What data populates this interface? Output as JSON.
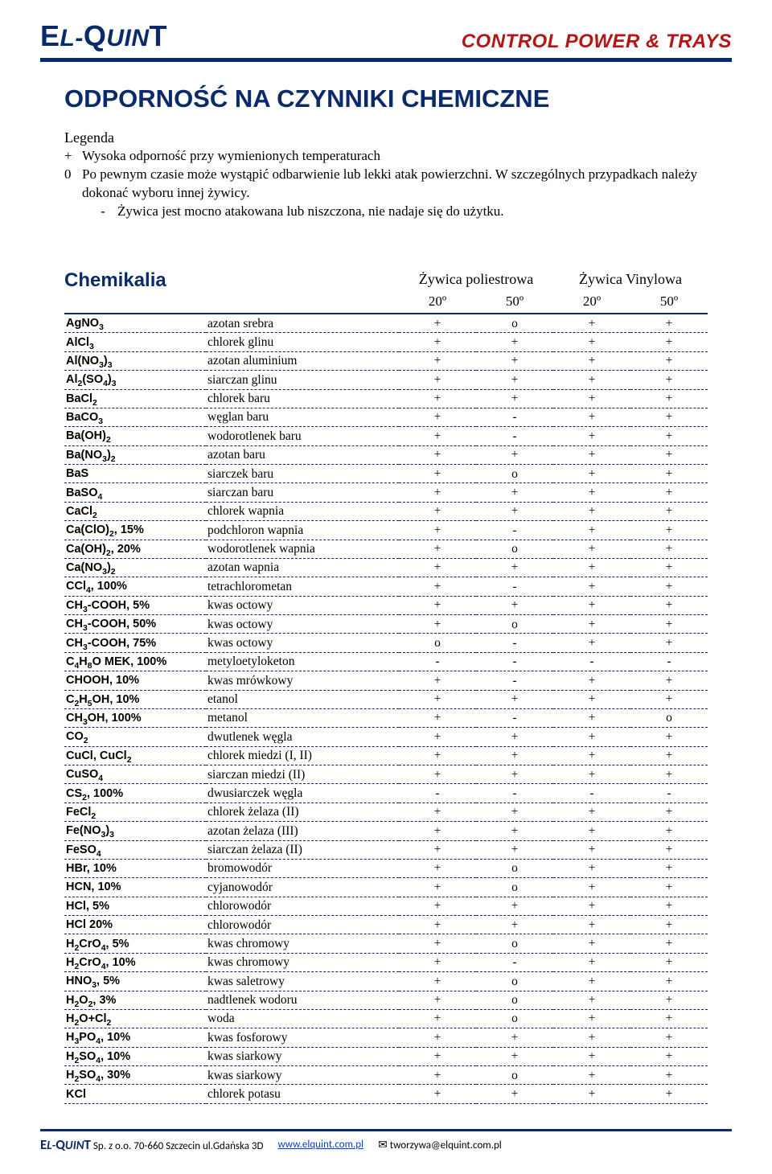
{
  "brand": {
    "logo_html": "<span class='e-big'>E</span><span class='l-ital'>L</span><span class='dash'>-</span><span class='q-big'>Q</span><span class='uin'>UIN</span><span class='t-big'>T</span>",
    "tagline": "CONTROL POWER & TRAYS",
    "color_primary": "#0a2a6b",
    "color_accent": "#b31616"
  },
  "title": "ODPORNOŚĆ NA CZYNNIKI CHEMICZNE",
  "legend": {
    "label": "Legenda",
    "items": [
      {
        "sym": "+",
        "text": "Wysoka odporność przy wymienionych temperaturach"
      },
      {
        "sym": "0",
        "text": "Po pewnym czasie może wystąpić odbarwienie lub lekki atak powierzchni. W szczególnych przypadkach należy dokonać wyboru innej żywicy."
      },
      {
        "sym": "-",
        "text": "Żywica jest mocno atakowana lub niszczona, nie nadaje się do użytku."
      }
    ]
  },
  "table": {
    "heading": "Chemikalia",
    "resin1": "Żywica poliestrowa",
    "resin2": "Żywica Vinylowa",
    "temps": [
      "20º",
      "50º",
      "20º",
      "50º"
    ],
    "col_widths": [
      "22%",
      "30%",
      "12%",
      "12%",
      "12%",
      "12%"
    ],
    "rows": [
      {
        "f": "AgNO<sub>3</sub>",
        "n": "azotan srebra",
        "v": [
          "+",
          "o",
          "+",
          "+"
        ]
      },
      {
        "f": "AlCl<sub>3</sub>",
        "n": "chlorek glinu",
        "v": [
          "+",
          "+",
          "+",
          "+"
        ]
      },
      {
        "f": "Al(NO<sub>3</sub>)<sub>3</sub>",
        "n": "azotan aluminium",
        "v": [
          "+",
          "+",
          "+",
          "+"
        ]
      },
      {
        "f": "Al<sub>2</sub>(SO<sub>4</sub>)<sub>3</sub>",
        "n": "siarczan glinu",
        "v": [
          "+",
          "+",
          "+",
          "+"
        ]
      },
      {
        "f": "BaCl<sub>2</sub>",
        "n": "chlorek baru",
        "v": [
          "+",
          "+",
          "+",
          "+"
        ]
      },
      {
        "f": "BaCO<sub>3</sub>",
        "n": "węglan baru",
        "v": [
          "+",
          "-",
          "+",
          "+"
        ]
      },
      {
        "f": "Ba(OH)<sub>2</sub>",
        "n": "wodorotlenek baru",
        "v": [
          "+",
          "-",
          "+",
          "+"
        ]
      },
      {
        "f": "Ba(NO<sub>3</sub>)<sub>2</sub>",
        "n": "azotan baru",
        "v": [
          "+",
          "+",
          "+",
          "+"
        ]
      },
      {
        "f": "BaS",
        "n": "siarczek baru",
        "v": [
          "+",
          "o",
          "+",
          "+"
        ]
      },
      {
        "f": "BaSO<sub>4</sub>",
        "n": "siarczan baru",
        "v": [
          "+",
          "+",
          "+",
          "+"
        ]
      },
      {
        "f": "CaCl<sub>2</sub>",
        "n": "chlorek wapnia",
        "v": [
          "+",
          "+",
          "+",
          "+"
        ]
      },
      {
        "f": "Ca(ClO)<sub>2</sub>, 15%",
        "n": "podchloron wapnia",
        "v": [
          "+",
          "-",
          "+",
          "+"
        ]
      },
      {
        "f": "Ca(OH)<sub>2</sub>, 20%",
        "n": "wodorotlenek wapnia",
        "v": [
          "+",
          "o",
          "+",
          "+"
        ]
      },
      {
        "f": "Ca(NO<sub>3</sub>)<sub>2</sub>",
        "n": "azotan wapnia",
        "v": [
          "+",
          "+",
          "+",
          "+"
        ]
      },
      {
        "f": "CCl<sub>4</sub>, 100%",
        "n": "tetrachlorometan",
        "v": [
          "+",
          "-",
          "+",
          "+"
        ]
      },
      {
        "f": "CH<sub>3</sub>-COOH, 5%",
        "n": "kwas octowy",
        "v": [
          "+",
          "+",
          "+",
          "+"
        ]
      },
      {
        "f": "CH<sub>3</sub>-COOH, 50%",
        "n": "kwas octowy",
        "v": [
          "+",
          "o",
          "+",
          "+"
        ]
      },
      {
        "f": "CH<sub>3</sub>-COOH, 75%",
        "n": "kwas octowy",
        "v": [
          "o",
          "-",
          "+",
          "+"
        ]
      },
      {
        "f": "C<sub>4</sub>H<sub>8</sub>O MEK, 100%",
        "n": "metyloetyloketon",
        "v": [
          "-",
          "-",
          "-",
          "-"
        ]
      },
      {
        "f": "CHOOH, 10%",
        "n": "kwas mrówkowy",
        "v": [
          "+",
          "-",
          "+",
          "+"
        ]
      },
      {
        "f": "C<sub>2</sub>H<sub>5</sub>OH, 10%",
        "n": "etanol",
        "v": [
          "+",
          "+",
          "+",
          "+"
        ]
      },
      {
        "f": "CH<sub>3</sub>OH, 100%",
        "n": "metanol",
        "v": [
          "+",
          "-",
          "+",
          "o"
        ]
      },
      {
        "f": "CO<sub>2</sub>",
        "n": "dwutlenek węgla",
        "v": [
          "+",
          "+",
          "+",
          "+"
        ]
      },
      {
        "f": "CuCl, CuCl<sub>2</sub>",
        "n": "chlorek miedzi (I, II)",
        "v": [
          "+",
          "+",
          "+",
          "+"
        ]
      },
      {
        "f": "CuSO<sub>4</sub>",
        "n": "siarczan miedzi (II)",
        "v": [
          "+",
          "+",
          "+",
          "+"
        ]
      },
      {
        "f": "CS<sub>2</sub>, 100%",
        "n": "dwusiarczek węgla",
        "v": [
          "-",
          "-",
          "-",
          "-"
        ]
      },
      {
        "f": "FeCl<sub>2</sub>",
        "n": "chlorek żelaza (II)",
        "v": [
          "+",
          "+",
          "+",
          "+"
        ]
      },
      {
        "f": "Fe(NO<sub>3</sub>)<sub>3</sub>",
        "n": "azotan żelaza (III)",
        "v": [
          "+",
          "+",
          "+",
          "+"
        ]
      },
      {
        "f": "FeSO<sub>4</sub>",
        "n": "siarczan żelaza (II)",
        "v": [
          "+",
          "+",
          "+",
          "+"
        ]
      },
      {
        "f": "HBr, 10%",
        "n": "bromowodór",
        "v": [
          "+",
          "o",
          "+",
          "+"
        ]
      },
      {
        "f": "HCN, 10%",
        "n": "cyjanowodór",
        "v": [
          "+",
          "o",
          "+",
          "+"
        ]
      },
      {
        "f": "HCl, 5%",
        "n": "chlorowodór",
        "v": [
          "+",
          "+",
          "+",
          "+"
        ]
      },
      {
        "f": "HCl 20%",
        "n": "chlorowodór",
        "v": [
          "+",
          "+",
          "+",
          "+"
        ]
      },
      {
        "f": "H<sub>2</sub>CrO<sub>4</sub>, 5%",
        "n": "kwas chromowy",
        "v": [
          "+",
          "o",
          "+",
          "+"
        ]
      },
      {
        "f": "H<sub>2</sub>CrO<sub>4</sub>, 10%",
        "n": "kwas chromowy",
        "v": [
          "+",
          "-",
          "+",
          "+"
        ]
      },
      {
        "f": "HNO<sub>3</sub>, 5%",
        "n": "kwas saletrowy",
        "v": [
          "+",
          "o",
          "+",
          "+"
        ]
      },
      {
        "f": "H<sub>2</sub>O<sub>2</sub>, 3%",
        "n": "nadtlenek wodoru",
        "v": [
          "+",
          "o",
          "+",
          "+"
        ]
      },
      {
        "f": "H<sub>2</sub>O+Cl<sub>2</sub>",
        "n": "woda",
        "v": [
          "+",
          "o",
          "+",
          "+"
        ]
      },
      {
        "f": "H<sub>3</sub>PO<sub>4</sub>, 10%",
        "n": "kwas fosforowy",
        "v": [
          "+",
          "+",
          "+",
          "+"
        ]
      },
      {
        "f": "H<sub>2</sub>SO<sub>4</sub>, 10%",
        "n": "kwas siarkowy",
        "v": [
          "+",
          "+",
          "+",
          "+"
        ]
      },
      {
        "f": "H<sub>2</sub>SO<sub>4</sub>, 30%",
        "n": "kwas siarkowy",
        "v": [
          "+",
          "o",
          "+",
          "+"
        ]
      },
      {
        "f": "KCl",
        "n": "chlorek potasu",
        "v": [
          "+",
          "+",
          "+",
          "+"
        ]
      }
    ]
  },
  "footer": {
    "company": "Sp. z o.o.  70-660 Szczecin ul.Gdańska 3D",
    "url": "www.elquint.com.pl",
    "email": "tworzywa@elquint.com.pl"
  }
}
